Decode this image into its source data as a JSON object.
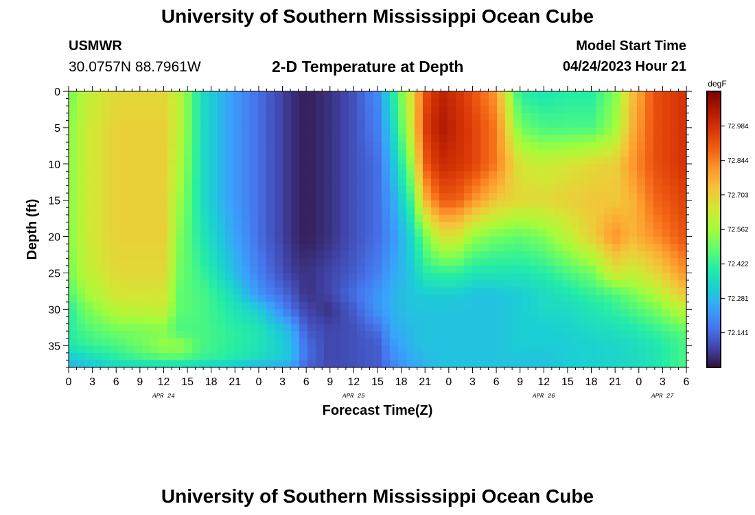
{
  "page_title": "University of Southern Mississippi Ocean Cube",
  "station": {
    "name": "USMWR",
    "coords": "30.0757N  88.7961W"
  },
  "model": {
    "label": "Model Start Time",
    "start": "04/24/2023 Hour 21"
  },
  "plot_title": "2-D Temperature at Depth",
  "footer_title": "University of Southern Mississippi Ocean Cube",
  "chart_data": {
    "type": "heatmap",
    "title": "2-D Temperature at Depth",
    "xlabel": "Forecast Time(Z)",
    "ylabel": "Depth (ft)",
    "xlim": [
      0,
      78
    ],
    "ylim": [
      38,
      0
    ],
    "x_tick_labels": [
      "0",
      "3",
      "6",
      "9",
      "12",
      "15",
      "18",
      "21",
      "0",
      "3",
      "6",
      "9",
      "12",
      "15",
      "18",
      "21",
      "0",
      "3",
      "6",
      "9",
      "12",
      "15",
      "18",
      "21",
      "0",
      "3",
      "6"
    ],
    "date_labels": [
      {
        "label": "APR 24",
        "hour": 12
      },
      {
        "label": "APR 25",
        "hour": 36
      },
      {
        "label": "APR 26",
        "hour": 60
      },
      {
        "label": "APR 27",
        "hour": 75
      }
    ],
    "y_ticks": [
      0,
      5,
      10,
      15,
      20,
      25,
      30,
      35
    ],
    "colorbar": {
      "units": "degF",
      "min": 72.0,
      "max": 73.125,
      "tick_values": [
        72.984,
        72.844,
        72.703,
        72.562,
        72.422,
        72.281,
        72.141
      ],
      "colors": [
        "#30123b",
        "#4145ab",
        "#4675ed",
        "#39a2fc",
        "#1bcfd4",
        "#24eca6",
        "#61fc6c",
        "#a4fc3b",
        "#d1e834",
        "#f3c63a",
        "#fe9b2d",
        "#f36315",
        "#d93806",
        "#b11901",
        "#7a0402"
      ]
    },
    "series_desc": "Temperature (degF) by forecast hour (x) and depth in ft (y)",
    "anchors_x": [
      0,
      2,
      6,
      12,
      14,
      17,
      20,
      24,
      28,
      30,
      33,
      36,
      39,
      41,
      43,
      45,
      47,
      49,
      51,
      54,
      57,
      60,
      63,
      66,
      69,
      71,
      74,
      78
    ],
    "anchors_y": [
      0,
      5,
      10,
      15,
      20,
      25,
      28,
      30,
      33,
      35,
      37,
      38
    ],
    "values": [
      [
        72.5,
        72.6,
        72.68,
        72.68,
        72.6,
        72.35,
        72.25,
        72.15,
        72.05,
        72.02,
        72.05,
        72.1,
        72.2,
        72.4,
        72.62,
        72.92,
        73.02,
        72.98,
        72.92,
        72.8,
        72.4,
        72.38,
        72.4,
        72.4,
        72.52,
        72.72,
        72.92,
        72.98
      ],
      [
        72.52,
        72.62,
        72.7,
        72.7,
        72.6,
        72.35,
        72.25,
        72.15,
        72.05,
        72.02,
        72.05,
        72.1,
        72.18,
        72.35,
        72.6,
        72.95,
        73.05,
        73.0,
        72.95,
        72.85,
        72.5,
        72.45,
        72.45,
        72.45,
        72.55,
        72.75,
        72.92,
        72.98
      ],
      [
        72.52,
        72.62,
        72.7,
        72.7,
        72.58,
        72.35,
        72.25,
        72.15,
        72.05,
        72.02,
        72.05,
        72.1,
        72.15,
        72.3,
        72.5,
        72.9,
        73.0,
        72.98,
        72.95,
        72.85,
        72.65,
        72.62,
        72.65,
        72.68,
        72.7,
        72.8,
        72.92,
        72.98
      ],
      [
        72.52,
        72.62,
        72.7,
        72.7,
        72.55,
        72.35,
        72.25,
        72.15,
        72.05,
        72.02,
        72.05,
        72.1,
        72.15,
        72.25,
        72.4,
        72.75,
        72.9,
        72.9,
        72.82,
        72.72,
        72.68,
        72.68,
        72.7,
        72.72,
        72.72,
        72.75,
        72.88,
        72.95
      ],
      [
        72.52,
        72.62,
        72.7,
        72.7,
        72.52,
        72.38,
        72.28,
        72.15,
        72.05,
        72.02,
        72.05,
        72.1,
        72.15,
        72.22,
        72.32,
        72.5,
        72.65,
        72.65,
        72.55,
        72.5,
        72.48,
        72.52,
        72.6,
        72.7,
        72.82,
        72.75,
        72.82,
        72.92
      ],
      [
        72.5,
        72.6,
        72.68,
        72.68,
        72.5,
        72.42,
        72.32,
        72.18,
        72.07,
        72.05,
        72.08,
        72.12,
        72.18,
        72.25,
        72.3,
        72.4,
        72.42,
        72.42,
        72.38,
        72.38,
        72.38,
        72.4,
        72.45,
        72.5,
        72.65,
        72.62,
        72.68,
        72.82
      ],
      [
        72.45,
        72.55,
        72.65,
        72.65,
        72.48,
        72.45,
        72.38,
        72.22,
        72.12,
        72.05,
        72.08,
        72.15,
        72.22,
        72.27,
        72.3,
        72.32,
        72.32,
        72.32,
        72.3,
        72.3,
        72.32,
        72.35,
        72.38,
        72.42,
        72.45,
        72.5,
        72.58,
        72.72
      ],
      [
        72.4,
        72.5,
        72.6,
        72.62,
        72.48,
        72.45,
        72.4,
        72.32,
        72.15,
        72.08,
        72.05,
        72.12,
        72.22,
        72.27,
        72.3,
        72.3,
        72.3,
        72.3,
        72.3,
        72.3,
        72.32,
        72.35,
        72.35,
        72.38,
        72.42,
        72.45,
        72.5,
        72.62
      ],
      [
        72.4,
        72.45,
        72.5,
        72.52,
        72.45,
        72.45,
        72.42,
        72.38,
        72.28,
        72.12,
        72.08,
        72.1,
        72.15,
        72.25,
        72.28,
        72.3,
        72.3,
        72.3,
        72.3,
        72.3,
        72.32,
        72.32,
        72.33,
        72.35,
        72.36,
        72.38,
        72.42,
        72.48
      ],
      [
        72.38,
        72.42,
        72.45,
        72.55,
        72.55,
        72.45,
        72.42,
        72.38,
        72.3,
        72.15,
        72.08,
        72.1,
        72.12,
        72.22,
        72.27,
        72.3,
        72.3,
        72.3,
        72.3,
        72.3,
        72.32,
        72.32,
        72.32,
        72.33,
        72.34,
        72.35,
        72.38,
        72.45
      ],
      [
        72.3,
        72.32,
        72.4,
        72.45,
        72.45,
        72.42,
        72.4,
        72.35,
        72.3,
        72.15,
        72.08,
        72.1,
        72.12,
        72.2,
        72.25,
        72.28,
        72.3,
        72.3,
        72.3,
        72.3,
        72.3,
        72.3,
        72.32,
        72.33,
        72.34,
        72.35,
        72.38,
        72.45
      ],
      [
        72.28,
        72.3,
        72.32,
        72.32,
        72.32,
        72.3,
        72.28,
        72.25,
        72.22,
        72.12,
        72.1,
        72.1,
        72.12,
        72.18,
        72.24,
        72.27,
        72.3,
        72.3,
        72.3,
        72.3,
        72.3,
        72.3,
        72.32,
        72.33,
        72.34,
        72.35,
        72.38,
        72.45
      ]
    ]
  }
}
